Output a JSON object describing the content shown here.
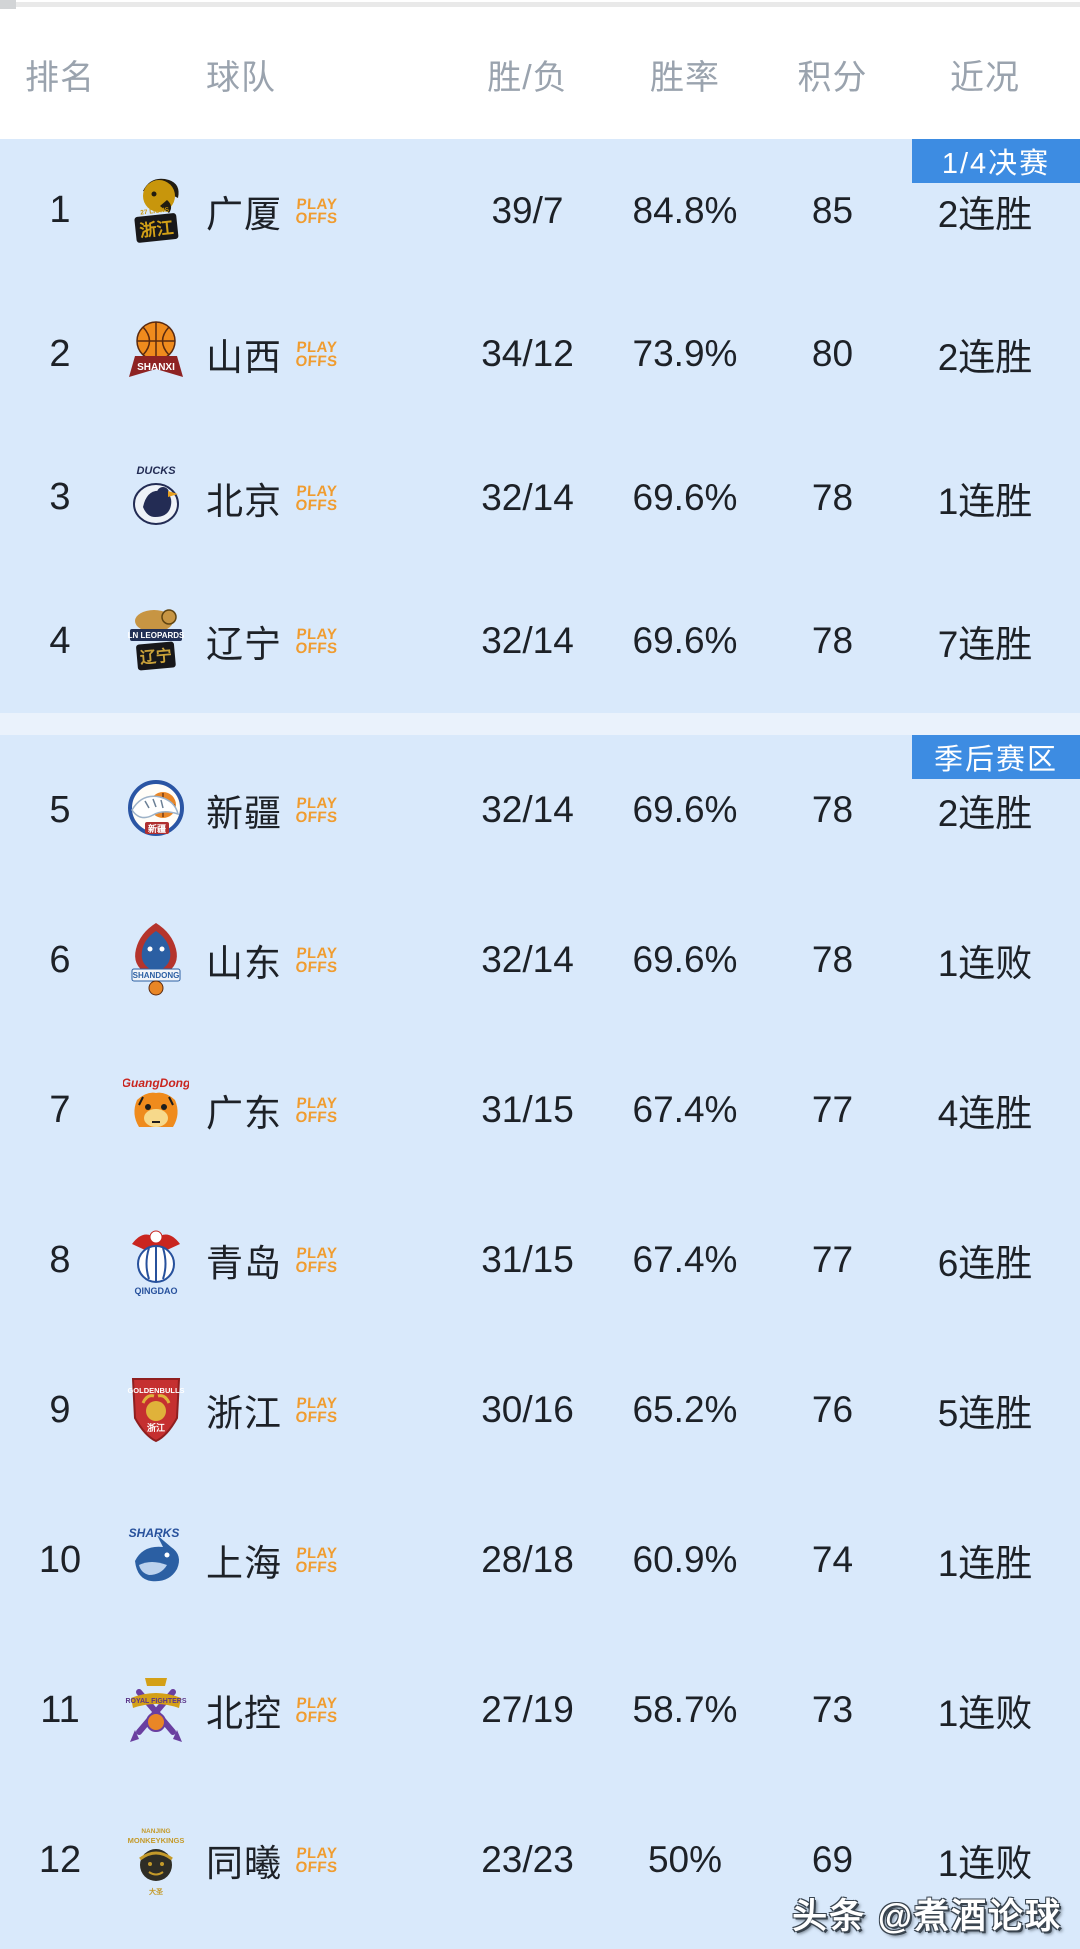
{
  "colors": {
    "section_bg": "#d9e9fb",
    "badge_bg": "#3d8ce2",
    "header_text": "#9aa3ae",
    "row_text": "#1d2127",
    "playoffs_orange": "#f09c2f"
  },
  "table": {
    "headers": {
      "rank": "排名",
      "team": "球队",
      "record": "胜/负",
      "win_rate": "胜率",
      "points": "积分",
      "form": "近况"
    },
    "playoffs_label": {
      "line1": "PLAY",
      "line2": "OFFS"
    },
    "sections": [
      {
        "badge": "1/4决赛",
        "rows": [
          {
            "rank": "1",
            "team": "广厦",
            "logo": "zhejiang-lions-logo",
            "record": "39/7",
            "win_rate": "84.8%",
            "points": "85",
            "form": "2连胜"
          },
          {
            "rank": "2",
            "team": "山西",
            "logo": "shanxi-loongs-logo",
            "record": "34/12",
            "win_rate": "73.9%",
            "points": "80",
            "form": "2连胜"
          },
          {
            "rank": "3",
            "team": "北京",
            "logo": "beijing-ducks-logo",
            "record": "32/14",
            "win_rate": "69.6%",
            "points": "78",
            "form": "1连胜"
          },
          {
            "rank": "4",
            "team": "辽宁",
            "logo": "liaoning-leopards-logo",
            "record": "32/14",
            "win_rate": "69.6%",
            "points": "78",
            "form": "7连胜"
          }
        ]
      },
      {
        "badge": "季后赛区",
        "rows": [
          {
            "rank": "5",
            "team": "新疆",
            "logo": "xinjiang-tigers-logo",
            "record": "32/14",
            "win_rate": "69.6%",
            "points": "78",
            "form": "2连胜"
          },
          {
            "rank": "6",
            "team": "山东",
            "logo": "shandong-heroes-logo",
            "record": "32/14",
            "win_rate": "69.6%",
            "points": "78",
            "form": "1连败"
          },
          {
            "rank": "7",
            "team": "广东",
            "logo": "guangdong-tigers-logo",
            "record": "31/15",
            "win_rate": "67.4%",
            "points": "77",
            "form": "4连胜"
          },
          {
            "rank": "8",
            "team": "青岛",
            "logo": "qingdao-eagles-logo",
            "record": "31/15",
            "win_rate": "67.4%",
            "points": "77",
            "form": "6连胜"
          },
          {
            "rank": "9",
            "team": "浙江",
            "logo": "zhejiang-goldenbulls-logo",
            "record": "30/16",
            "win_rate": "65.2%",
            "points": "76",
            "form": "5连胜"
          },
          {
            "rank": "10",
            "team": "上海",
            "logo": "shanghai-sharks-logo",
            "record": "28/18",
            "win_rate": "60.9%",
            "points": "74",
            "form": "1连胜"
          },
          {
            "rank": "11",
            "team": "北控",
            "logo": "beijing-royalfighters-logo",
            "record": "27/19",
            "win_rate": "58.7%",
            "points": "73",
            "form": "1连败"
          },
          {
            "rank": "12",
            "team": "同曦",
            "logo": "nanjing-monkeykings-logo",
            "record": "23/23",
            "win_rate": "50%",
            "points": "69",
            "form": "1连败"
          }
        ]
      }
    ]
  },
  "watermark": "头条 @煮酒论球"
}
